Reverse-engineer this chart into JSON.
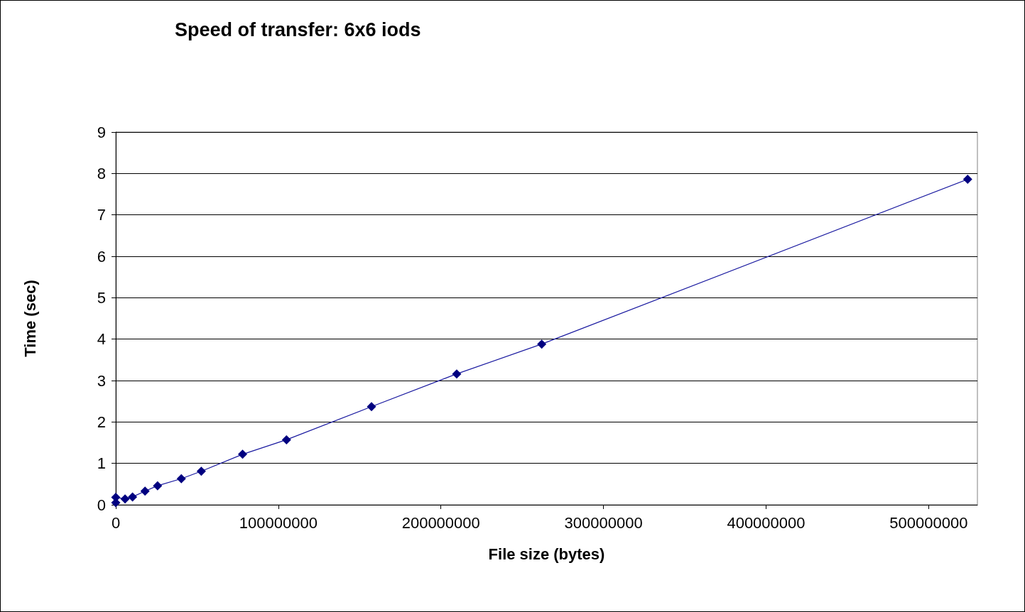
{
  "chart_data": {
    "type": "line",
    "title": "Speed of transfer: 6x6 iods",
    "xlabel": "File size (bytes)",
    "ylabel": "Time (sec)",
    "x": [
      0,
      0,
      5700000,
      10300000,
      18000000,
      25700000,
      40300000,
      52600000,
      78000000,
      105000000,
      157300000,
      209700000,
      262000000,
      524000000
    ],
    "series": [
      {
        "color": "#000080",
        "values": [
          0.05,
          0.18,
          0.14,
          0.19,
          0.33,
          0.46,
          0.63,
          0.81,
          1.22,
          1.57,
          2.37,
          3.16,
          3.88,
          7.86
        ]
      }
    ],
    "xlim": [
      0,
      530000000
    ],
    "xticks": [
      0,
      100000000,
      200000000,
      300000000,
      400000000,
      500000000
    ],
    "ylim": [
      0,
      9
    ],
    "yticks": [
      0,
      1,
      2,
      3,
      4,
      5,
      6,
      7,
      8,
      9
    ],
    "grid": "y",
    "marker": "diamond",
    "line_style": "solid"
  }
}
